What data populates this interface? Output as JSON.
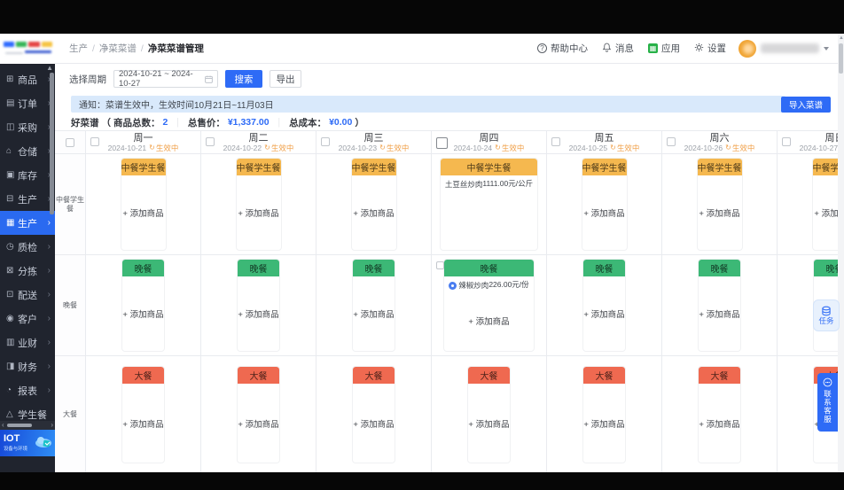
{
  "colors": {
    "accent": "#2e6bf6",
    "lunch": "#f5b84f",
    "dinner": "#3cb876",
    "feast": "#ef6950",
    "notice_bg": "#d9e9fb"
  },
  "sidebar": {
    "items": [
      {
        "id": "goods",
        "label": "商品",
        "icon": "grid-icon",
        "arrow": "›"
      },
      {
        "id": "orders",
        "label": "订单",
        "icon": "order-icon",
        "arrow": "›"
      },
      {
        "id": "purchase",
        "label": "采购",
        "icon": "purchase-icon",
        "arrow": "›"
      },
      {
        "id": "warehouse",
        "label": "仓储",
        "icon": "warehouse-icon",
        "arrow": "›"
      },
      {
        "id": "inventory",
        "label": "库存",
        "icon": "inventory-icon",
        "arrow": "›"
      },
      {
        "id": "production",
        "label": "生产",
        "icon": "production-icon",
        "arrow": "›"
      },
      {
        "id": "production-2",
        "label": "生产",
        "icon": "production-alt-icon",
        "arrow": "›",
        "active": true
      },
      {
        "id": "quality",
        "label": "质检",
        "icon": "quality-check-icon",
        "arrow": "›"
      },
      {
        "id": "sorting",
        "label": "分拣",
        "icon": "sorting-icon",
        "arrow": "›"
      },
      {
        "id": "delivery",
        "label": "配送",
        "icon": "delivery-icon",
        "arrow": "›"
      },
      {
        "id": "customer",
        "label": "客户",
        "icon": "customer-icon",
        "arrow": "›"
      },
      {
        "id": "business-finance",
        "label": "业财",
        "icon": "business-finance-icon",
        "arrow": "›"
      },
      {
        "id": "finance",
        "label": "财务",
        "icon": "finance-icon",
        "arrow": "›"
      },
      {
        "id": "report",
        "label": "报表",
        "icon": "report-icon",
        "arrow": "›"
      },
      {
        "id": "student-meal",
        "label": "学生餐",
        "icon": "student-meal-icon",
        "arrow": ""
      }
    ],
    "iot": {
      "title": "IOT",
      "subtitle": "设备与环境"
    }
  },
  "header": {
    "breadcrumb": [
      "生产",
      "净菜菜谱",
      "净菜菜谱管理"
    ],
    "separator": "/",
    "actions": [
      {
        "id": "help",
        "label": "帮助中心",
        "icon": "help-icon"
      },
      {
        "id": "messages",
        "label": "消息",
        "icon": "bell-icon"
      },
      {
        "id": "apps",
        "label": "应用",
        "icon": "apps-icon"
      },
      {
        "id": "settings",
        "label": "设置",
        "icon": "gear-icon"
      }
    ]
  },
  "filter": {
    "label": "选择周期",
    "date_range": "2024-10-21 ~ 2024-10-27",
    "search_label": "搜索",
    "export_label": "导出"
  },
  "notice": {
    "text": "通知：菜谱生效中，生效时间10月21日~11月03日"
  },
  "import_label": "导入菜谱",
  "summary": {
    "name": "好菜谱",
    "open": "（",
    "items_label": "商品总数：",
    "items_count": "2",
    "divider": "｜",
    "price_label": "总售价：",
    "total_price": "¥1,337.00",
    "cost_label": "总成本：",
    "total_cost": "¥0.00",
    "close": "）"
  },
  "plan": {
    "add_label": "+ 添加商品",
    "status_label": "生效中",
    "days": [
      {
        "name": "周一",
        "date": "2024-10-21"
      },
      {
        "name": "周二",
        "date": "2024-10-22"
      },
      {
        "name": "周三",
        "date": "2024-10-23"
      },
      {
        "name": "周四",
        "date": "2024-10-24",
        "big_checkbox": true
      },
      {
        "name": "周五",
        "date": "2024-10-25"
      },
      {
        "name": "周六",
        "date": "2024-10-26"
      },
      {
        "name": "周日",
        "date": "2024-10-27"
      }
    ],
    "rows": [
      {
        "label": "中餐学生餐",
        "header": "中餐学生餐",
        "color_key": "lunch",
        "cells": [
          {
            "add": true
          },
          {
            "add": true
          },
          {
            "add": true
          },
          {
            "add": false,
            "items": [
              {
                "name": "土豆丝炒肉",
                "price": "1111.00元/公斤"
              }
            ]
          },
          {
            "add": true
          },
          {
            "add": true
          },
          {
            "add": true
          }
        ]
      },
      {
        "label": "晚餐",
        "header": "晚餐",
        "color_key": "dinner",
        "cells": [
          {
            "add": true
          },
          {
            "add": true
          },
          {
            "add": true
          },
          {
            "add": true,
            "items": [
              {
                "name": "辣椒炒肉",
                "price": "226.00元/份",
                "checkbox": true,
                "tag": true
              }
            ]
          },
          {
            "add": true
          },
          {
            "add": true
          },
          {
            "add": true
          }
        ]
      },
      {
        "label": "大餐",
        "header": "大餐",
        "color_key": "feast",
        "cells": [
          {
            "add": true
          },
          {
            "add": true
          },
          {
            "add": true
          },
          {
            "add": true
          },
          {
            "add": true
          },
          {
            "add": true
          },
          {
            "add": true
          }
        ]
      }
    ]
  },
  "floating": {
    "task": "任务",
    "support": "联系客服"
  }
}
